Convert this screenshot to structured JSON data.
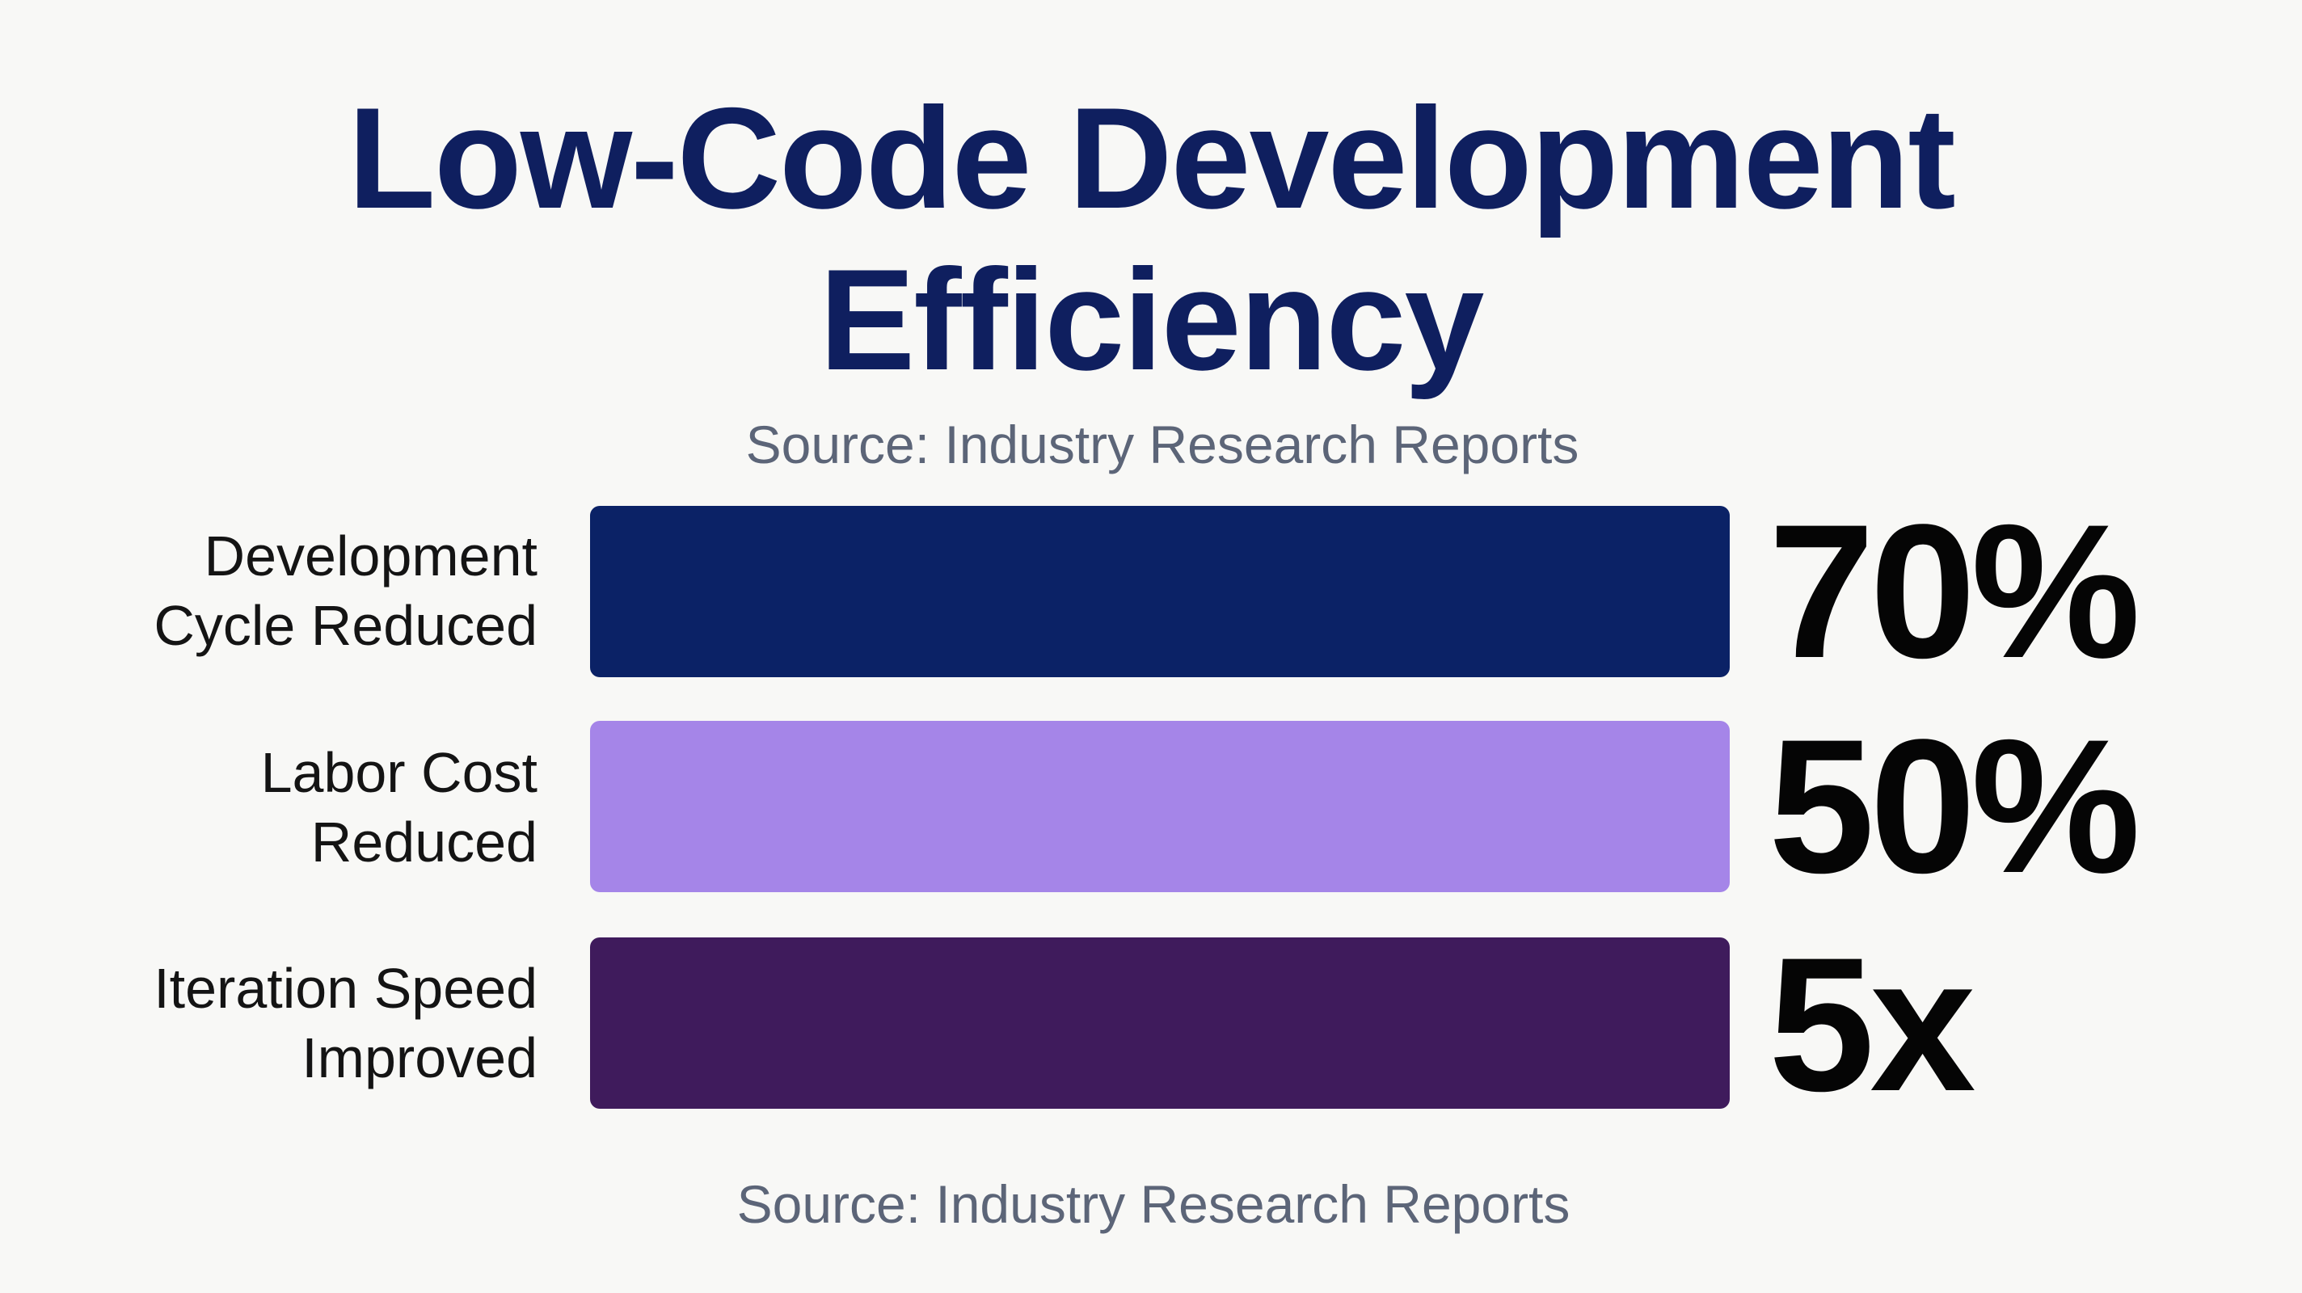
{
  "chart_data": {
    "type": "bar",
    "orientation": "horizontal",
    "title": "Low-Code Development Efficiency",
    "title_lines": [
      "Low-Code Development",
      "Efficiency"
    ],
    "subtitle": "Source: Industry Research Reports",
    "footer": "Source: Industry Research Reports",
    "categories": [
      "Development\nCycle Reduced",
      "Labor Cost\nReduced",
      "Iteration Speed\nImproved"
    ],
    "value_labels": [
      "70%",
      "50%",
      "5x"
    ],
    "colors": [
      "#0b2266",
      "#a585e8",
      "#3f1b5c"
    ],
    "xlabel": "",
    "ylabel": "",
    "grid": false
  }
}
